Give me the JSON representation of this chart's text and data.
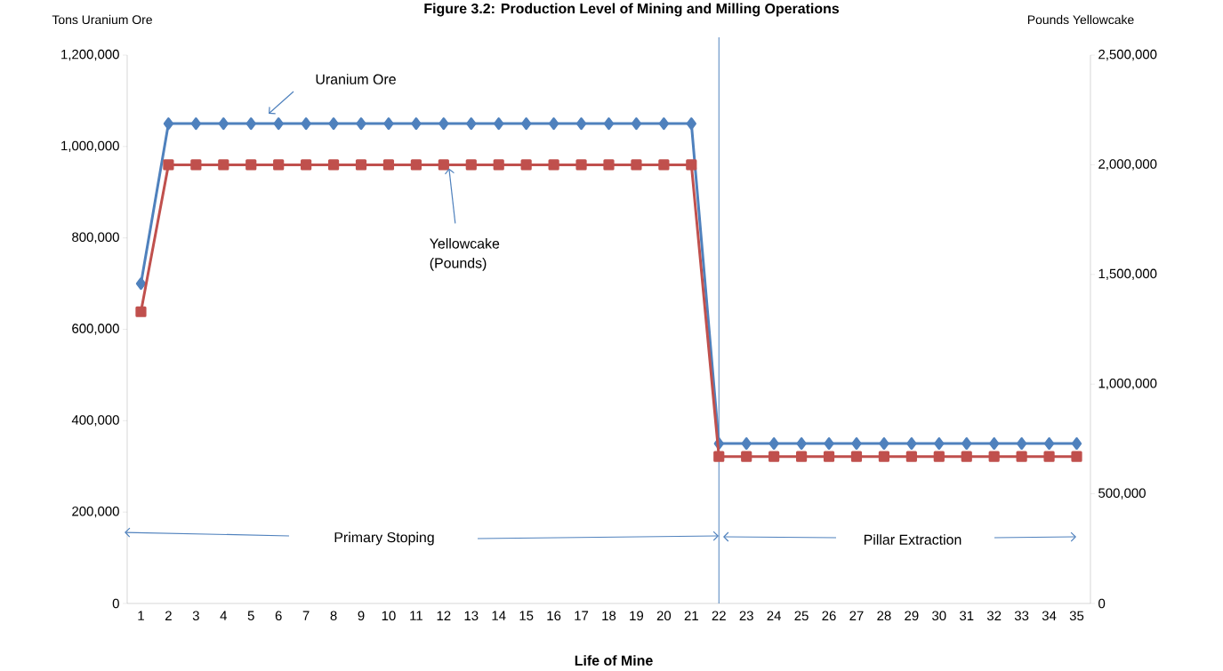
{
  "chart_data": {
    "type": "line",
    "title": "Figure 3.2: Production Level of Mining and Milling Operations",
    "xlabel": "Life of Mine",
    "ylabel": "Tons Uranium Ore",
    "y2label": "Pounds Yellowcake",
    "x": [
      1,
      2,
      3,
      4,
      5,
      6,
      7,
      8,
      9,
      10,
      11,
      12,
      13,
      14,
      15,
      16,
      17,
      18,
      19,
      20,
      21,
      22,
      23,
      24,
      25,
      26,
      27,
      28,
      29,
      30,
      31,
      32,
      33,
      34,
      35
    ],
    "xlim": [
      0.5,
      35.5
    ],
    "xticks": [
      1,
      2,
      3,
      4,
      5,
      6,
      7,
      8,
      9,
      10,
      11,
      12,
      13,
      14,
      15,
      16,
      17,
      18,
      19,
      20,
      21,
      22,
      23,
      24,
      25,
      26,
      27,
      28,
      29,
      30,
      31,
      32,
      33,
      34,
      35
    ],
    "ylim": [
      0,
      1200000
    ],
    "yticks": [
      0,
      {
        "value": 200000,
        "label": "200,000"
      },
      {
        "value": 400000,
        "label": "400,000"
      },
      {
        "value": 600000,
        "label": "600,000"
      },
      {
        "value": 800000,
        "label": "800,000"
      },
      {
        "value": 1000000,
        "label": "1,000,000"
      },
      {
        "value": 1200000,
        "label": "1,200,000"
      }
    ],
    "y2lim": [
      0,
      2500000
    ],
    "y2ticks": [
      0,
      {
        "value": 500000,
        "label": "500,000"
      },
      {
        "value": 1000000,
        "label": "1,000,000"
      },
      {
        "value": 1500000,
        "label": "1,500,000"
      },
      {
        "value": 2000000,
        "label": "2,000,000"
      },
      {
        "value": 2500000,
        "label": "2,500,000"
      }
    ],
    "series": [
      {
        "color": "#4f81bd",
        "marker": "diamond",
        "values": [
          700000,
          1050000,
          1050000,
          1050000,
          1050000,
          1050000,
          1050000,
          1050000,
          1050000,
          1050000,
          1050000,
          1050000,
          1050000,
          1050000,
          1050000,
          1050000,
          1050000,
          1050000,
          1050000,
          1050000,
          1050000,
          350000,
          350000,
          350000,
          350000,
          350000,
          350000,
          350000,
          350000,
          350000,
          350000,
          350000,
          350000,
          350000,
          350000
        ]
      },
      {
        "color": "#c0504d",
        "marker": "square",
        "axis": "y2",
        "values": [
          1330000,
          2000000,
          2000000,
          2000000,
          2000000,
          2000000,
          2000000,
          2000000,
          2000000,
          2000000,
          2000000,
          2000000,
          2000000,
          2000000,
          2000000,
          2000000,
          2000000,
          2000000,
          2000000,
          2000000,
          2000000,
          670000,
          670000,
          670000,
          670000,
          670000,
          670000,
          670000,
          670000,
          670000,
          670000,
          670000,
          670000,
          670000,
          670000
        ]
      }
    ],
    "line_style": "solid",
    "ref_lines": [
      {
        "axis": "x",
        "value": 22,
        "color": "#4f81bd"
      }
    ],
    "annotations": [
      "Uranium Ore",
      {
        "text": "Yellowcake (Pounds)",
        "x": 12,
        "y": 960000
      },
      "Primary Stoping",
      "Pillar Extraction"
    ]
  }
}
